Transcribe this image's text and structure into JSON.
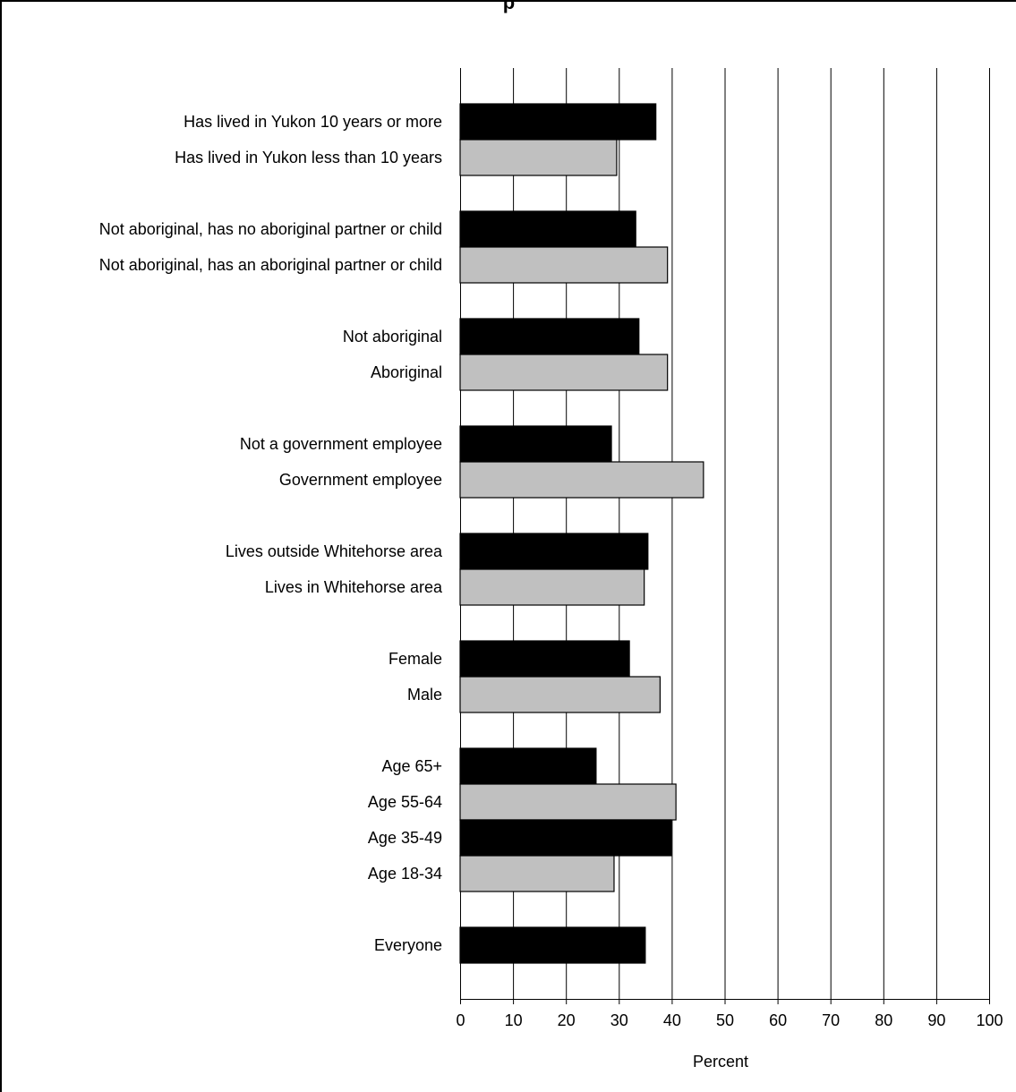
{
  "chart_data": {
    "type": "bar",
    "orientation": "horizontal",
    "title": "p",
    "xlabel": "Percent",
    "xlim": [
      0,
      100
    ],
    "xticks": [
      0,
      10,
      20,
      30,
      40,
      50,
      60,
      70,
      80,
      90,
      100
    ],
    "grid": "vertical",
    "legend": "none",
    "colors": {
      "dark": "#000000",
      "light": "#c0c0c0"
    },
    "groups": [
      {
        "bars": [
          {
            "label": "Has lived in Yukon 10 years or more",
            "value": 37,
            "color": "dark"
          },
          {
            "label": "Has lived in Yukon less than 10 years",
            "value": 29.6,
            "color": "light"
          }
        ]
      },
      {
        "bars": [
          {
            "label": "Not aboriginal, has no aboriginal partner or child",
            "value": 33.2,
            "color": "dark"
          },
          {
            "label": "Not aboriginal, has an aboriginal partner or child",
            "value": 39.2,
            "color": "light"
          }
        ]
      },
      {
        "bars": [
          {
            "label": "Not aboriginal",
            "value": 33.8,
            "color": "dark"
          },
          {
            "label": "Aboriginal",
            "value": 39.2,
            "color": "light"
          }
        ]
      },
      {
        "bars": [
          {
            "label": "Not a government employee",
            "value": 28.6,
            "color": "dark"
          },
          {
            "label": "Government employee",
            "value": 46,
            "color": "light"
          }
        ]
      },
      {
        "bars": [
          {
            "label": "Lives outside Whitehorse area",
            "value": 35.5,
            "color": "dark"
          },
          {
            "label": "Lives in Whitehorse area",
            "value": 34.8,
            "color": "light"
          }
        ]
      },
      {
        "bars": [
          {
            "label": "Female",
            "value": 32,
            "color": "dark"
          },
          {
            "label": "Male",
            "value": 37.8,
            "color": "light"
          }
        ]
      },
      {
        "bars": [
          {
            "label": "Age 65+",
            "value": 25.7,
            "color": "dark"
          },
          {
            "label": "Age 55-64",
            "value": 40.8,
            "color": "light"
          },
          {
            "label": "Age 35-49",
            "value": 39.9,
            "color": "dark"
          },
          {
            "label": "Age 18-34",
            "value": 29.1,
            "color": "light"
          }
        ]
      },
      {
        "bars": [
          {
            "label": "Everyone",
            "value": 35,
            "color": "dark"
          }
        ]
      }
    ]
  }
}
